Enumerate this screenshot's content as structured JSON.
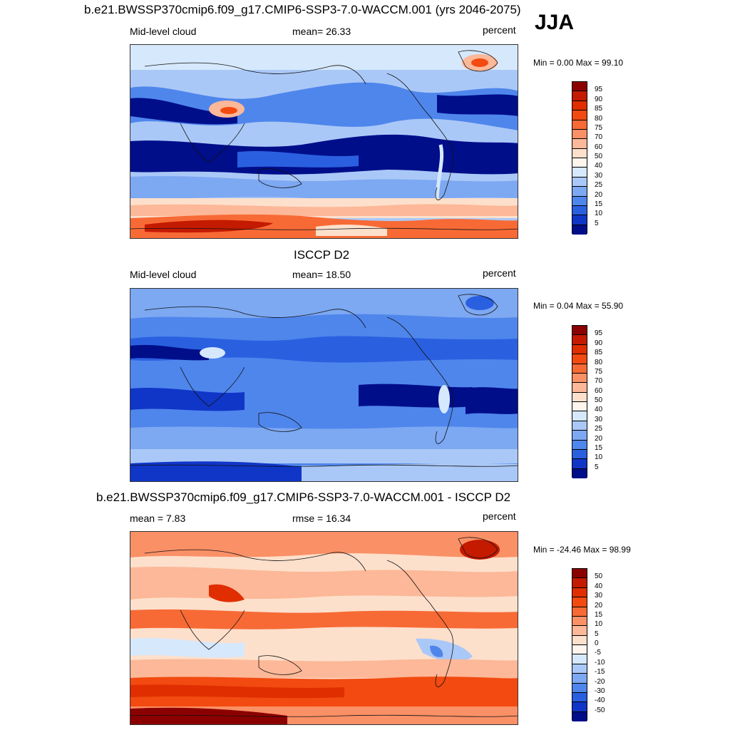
{
  "season": "JJA",
  "panels": [
    {
      "title": "b.e21.BWSSP370cmip6.f09_g17.CMIP6-SSP3-7.0-WACCM.001 (yrs 2046-2075)",
      "left_label": "Mid-level cloud",
      "center_label": "mean=  26.33",
      "units": "percent",
      "minmax": "Min =   0.00 Max =  99.10",
      "legend_labels": [
        "95",
        "90",
        "85",
        "80",
        "75",
        "70",
        "60",
        "50",
        "40",
        "30",
        "25",
        "20",
        "15",
        "10",
        "5"
      ],
      "legend_colors": [
        "#8b0000",
        "#c41a00",
        "#e02e00",
        "#f24a10",
        "#f76a35",
        "#fa9066",
        "#fcb898",
        "#fde0cc",
        "#fdf5ee",
        "#d6e8fc",
        "#aac8f7",
        "#7da8f2",
        "#4f86ec",
        "#2a60e0",
        "#1036c8",
        "#000e8a"
      ]
    },
    {
      "title": "ISCCP D2",
      "left_label": "Mid-level cloud",
      "center_label": "mean=  18.50",
      "units": "percent",
      "minmax": "Min =   0.04 Max =  55.90",
      "legend_labels": [
        "95",
        "90",
        "85",
        "80",
        "75",
        "70",
        "60",
        "50",
        "40",
        "30",
        "25",
        "20",
        "15",
        "10",
        "5"
      ],
      "legend_colors": [
        "#8b0000",
        "#c41a00",
        "#e02e00",
        "#f24a10",
        "#f76a35",
        "#fa9066",
        "#fcb898",
        "#fde0cc",
        "#fdf5ee",
        "#d6e8fc",
        "#aac8f7",
        "#7da8f2",
        "#4f86ec",
        "#2a60e0",
        "#1036c8",
        "#000e8a"
      ]
    },
    {
      "title": "b.e21.BWSSP370cmip6.f09_g17.CMIP6-SSP3-7.0-WACCM.001 - ISCCP D2",
      "left_label": "mean =   7.83",
      "center_label": "rmse =  16.34",
      "units": "percent",
      "minmax": "Min = -24.46 Max =  98.99",
      "legend_labels": [
        "50",
        "40",
        "30",
        "20",
        "15",
        "10",
        "5",
        "0",
        "-5",
        "-10",
        "-15",
        "-20",
        "-30",
        "-40",
        "-50"
      ],
      "legend_colors": [
        "#8b0000",
        "#c41a00",
        "#e02e00",
        "#f24a10",
        "#f76a35",
        "#fa9066",
        "#fcb898",
        "#fde0cc",
        "#fdf5ee",
        "#d6e8fc",
        "#aac8f7",
        "#7da8f2",
        "#4f86ec",
        "#2a60e0",
        "#1036c8",
        "#000e8a"
      ]
    }
  ]
}
